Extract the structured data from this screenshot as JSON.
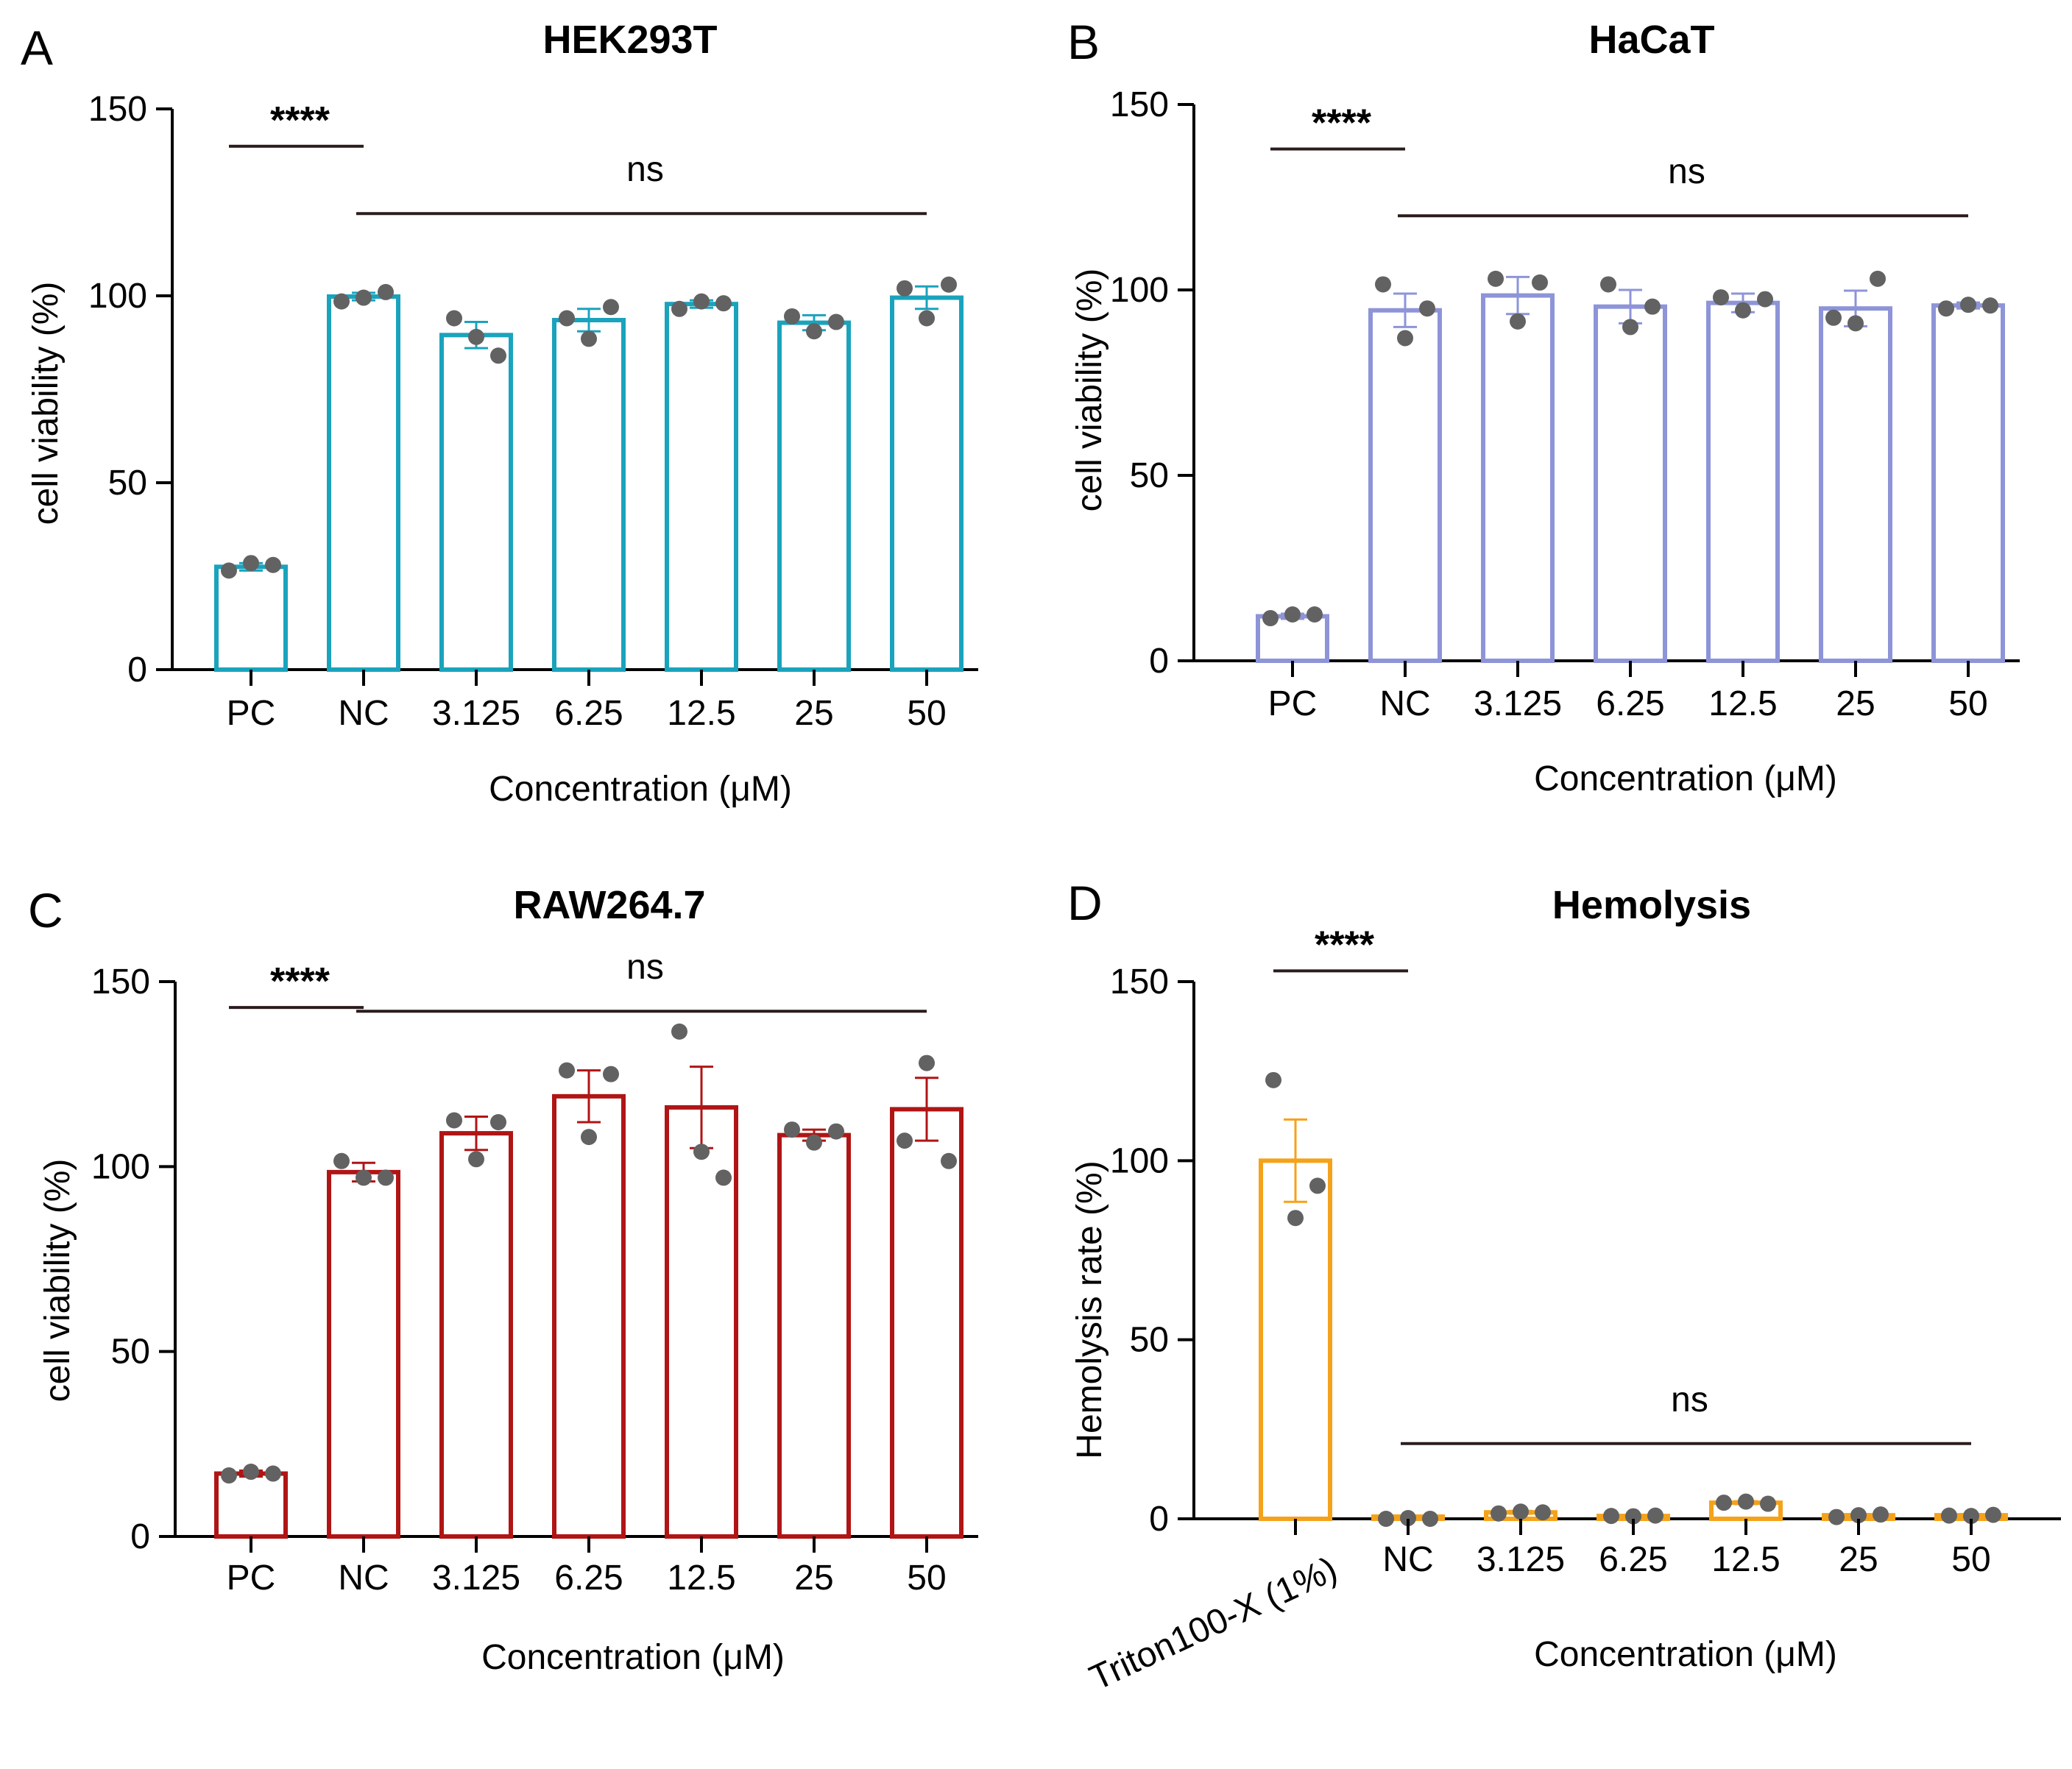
{
  "chart_data": [
    {
      "panel": "A",
      "type": "bar",
      "title": "HEK293T",
      "xlabel": "Concentration (μM)",
      "ylabel": "cell viability (%)",
      "ylim": [
        0,
        150
      ],
      "yticks": [
        0,
        50,
        100,
        150
      ],
      "color": "#1aa3bd",
      "categories": [
        "PC",
        "NC",
        "3.125",
        "6.25",
        "12.5",
        "25",
        "50"
      ],
      "values": [
        27.5,
        99.8,
        89.5,
        93.5,
        97.8,
        92.8,
        99.5
      ],
      "errors": [
        1.0,
        1.0,
        3.5,
        3.0,
        1.0,
        2.0,
        3.0
      ],
      "points": [
        [
          26.5,
          28.5,
          28.0
        ],
        [
          98.5,
          99.5,
          101.0
        ],
        [
          94.0,
          89.0,
          84.0
        ],
        [
          94.0,
          88.5,
          97.0
        ],
        [
          96.5,
          98.5,
          98.0
        ],
        [
          94.5,
          90.5,
          93.0
        ],
        [
          102.0,
          94.0,
          103.0
        ]
      ],
      "significance": [
        {
          "label": "****",
          "from": "PC",
          "to": "NC",
          "y": 140
        },
        {
          "label": "ns",
          "from": "NC",
          "to": "50",
          "y": 122
        }
      ]
    },
    {
      "panel": "B",
      "type": "bar",
      "title": "HaCaT",
      "xlabel": "Concentration (μM)",
      "ylabel": "cell viability (%)",
      "ylim": [
        0,
        150
      ],
      "yticks": [
        0,
        50,
        100,
        150
      ],
      "color": "#8e94d8",
      "categories": [
        "PC",
        "NC",
        "3.125",
        "6.25",
        "12.5",
        "25",
        "50"
      ],
      "values": [
        12.0,
        94.5,
        98.5,
        95.5,
        96.5,
        95.0,
        95.8
      ],
      "errors": [
        0.7,
        4.5,
        5.0,
        4.5,
        2.5,
        4.8,
        0.8
      ],
      "points": [
        [
          11.5,
          12.5,
          12.5
        ],
        [
          101.5,
          87.0,
          95.0
        ],
        [
          103.0,
          91.5,
          102.0
        ],
        [
          101.5,
          90.0,
          95.5
        ],
        [
          98.0,
          94.5,
          97.5
        ],
        [
          92.5,
          91.0,
          103.0
        ],
        [
          95.0,
          96.0,
          95.8
        ]
      ],
      "significance": [
        {
          "label": "****",
          "from": "PC",
          "to": "NC",
          "y": 138
        },
        {
          "label": "ns",
          "from": "NC",
          "to": "50",
          "y": 120
        }
      ]
    },
    {
      "panel": "C",
      "type": "bar",
      "title": "RAW264.7",
      "xlabel": "Concentration (μM)",
      "ylabel": "cell viability (%)",
      "ylim": [
        0,
        150
      ],
      "yticks": [
        0,
        50,
        100,
        150
      ],
      "color": "#b01515",
      "categories": [
        "PC",
        "NC",
        "3.125",
        "6.25",
        "12.5",
        "25",
        "50"
      ],
      "values": [
        17.0,
        98.5,
        109.0,
        119.0,
        116.0,
        108.5,
        115.5
      ],
      "errors": [
        0.8,
        2.5,
        4.5,
        7.0,
        11.0,
        1.5,
        8.5
      ],
      "points": [
        [
          16.5,
          17.5,
          17.0
        ],
        [
          101.5,
          97.0,
          97.0
        ],
        [
          112.5,
          102.0,
          112.0
        ],
        [
          126.0,
          108.0,
          125.0
        ],
        [
          136.5,
          104.0,
          97.0
        ],
        [
          110.0,
          106.5,
          109.5
        ],
        [
          107.0,
          128.0,
          101.5
        ]
      ],
      "significance": [
        {
          "label": "****",
          "from": "PC",
          "to": "NC",
          "y": 143
        },
        {
          "label": "ns",
          "from": "NC",
          "to": "50",
          "y": 142
        }
      ]
    },
    {
      "panel": "D",
      "type": "bar",
      "title": "Hemolysis",
      "xlabel": "Concentration (μM)",
      "ylabel": "Hemolysis rate (%)",
      "ylim": [
        0,
        150
      ],
      "yticks": [
        0,
        50,
        100,
        150
      ],
      "color": "#f5a21b",
      "categories": [
        "Triton100-X (1%)",
        "NC",
        "3.125",
        "6.25",
        "12.5",
        "25",
        "50"
      ],
      "values": [
        100.0,
        0.0,
        1.8,
        0.8,
        4.5,
        1.0,
        1.0
      ],
      "errors": [
        11.5,
        0.1,
        0.4,
        0.2,
        0.4,
        0.3,
        0.3
      ],
      "points": [
        [
          122.5,
          84.0,
          93.0
        ],
        [
          0.0,
          0.2,
          0.0
        ],
        [
          1.5,
          2.0,
          1.8
        ],
        [
          0.8,
          0.7,
          0.9
        ],
        [
          4.5,
          4.8,
          4.2
        ],
        [
          0.5,
          1.0,
          1.2
        ],
        [
          0.9,
          0.8,
          1.1
        ]
      ],
      "significance": [
        {
          "label": "****",
          "from": "Triton100-X (1%)",
          "to": "NC",
          "y": 153
        },
        {
          "label": "ns",
          "from": "NC",
          "to": "50",
          "y": 21
        }
      ]
    }
  ],
  "colors": {
    "dot": "#626262",
    "axis": "#000000",
    "sig_line": "#2b1c1c"
  }
}
